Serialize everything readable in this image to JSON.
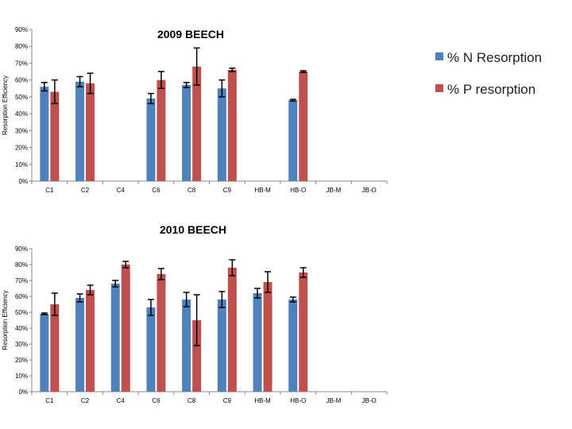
{
  "chart_data": [
    {
      "type": "bar",
      "title": "2009 BEECH",
      "ylabel": "Resorption Efficiency",
      "xlabel": "",
      "ylim": [
        0,
        90
      ],
      "yticks": [
        "0%",
        "10%",
        "20%",
        "30%",
        "40%",
        "50%",
        "60%",
        "70%",
        "80%",
        "90%"
      ],
      "categories": [
        "C1",
        "C2",
        "C4",
        "C6",
        "C8",
        "C9",
        "HB-M",
        "HB-O",
        "JB-M",
        "JB-O"
      ],
      "series": [
        {
          "name": "% N Resorption",
          "color": "#4f81bd",
          "values": [
            56,
            59,
            null,
            49,
            57,
            55,
            null,
            48,
            null,
            null
          ],
          "errors": [
            2.5,
            3,
            null,
            3,
            1.5,
            5,
            null,
            0.5,
            null,
            null
          ]
        },
        {
          "name": "% P resorption",
          "color": "#c0504d",
          "values": [
            53,
            58,
            null,
            60,
            68,
            66,
            null,
            65,
            null,
            null
          ],
          "errors": [
            7,
            6,
            null,
            5,
            11,
            1,
            null,
            0.5,
            null,
            null
          ]
        }
      ],
      "legend": "right"
    },
    {
      "type": "bar",
      "title": "2010 BEECH",
      "ylabel": "Resorption Efficiency",
      "xlabel": "",
      "ylim": [
        0,
        90
      ],
      "yticks": [
        "0%",
        "10%",
        "20%",
        "30%",
        "40%",
        "50%",
        "60%",
        "70%",
        "80%",
        "90%"
      ],
      "categories": [
        "C1",
        "C2",
        "C4",
        "C6",
        "C8",
        "C9",
        "HB-M",
        "HB-O",
        "JB-M",
        "JB-O"
      ],
      "series": [
        {
          "name": "% N Resorption",
          "color": "#4f81bd",
          "values": [
            49,
            59,
            68,
            53,
            58,
            58,
            62,
            58,
            null,
            null
          ],
          "errors": [
            0.5,
            2.5,
            2,
            5,
            4.5,
            5,
            3,
            1.5,
            null,
            null
          ]
        },
        {
          "name": "% P resorption",
          "color": "#c0504d",
          "values": [
            55,
            64,
            80,
            74,
            45,
            78,
            69,
            75,
            null,
            null
          ],
          "errors": [
            7,
            3,
            2,
            3.5,
            16,
            5,
            6.5,
            3,
            null,
            null
          ]
        }
      ],
      "legend": "none"
    }
  ]
}
